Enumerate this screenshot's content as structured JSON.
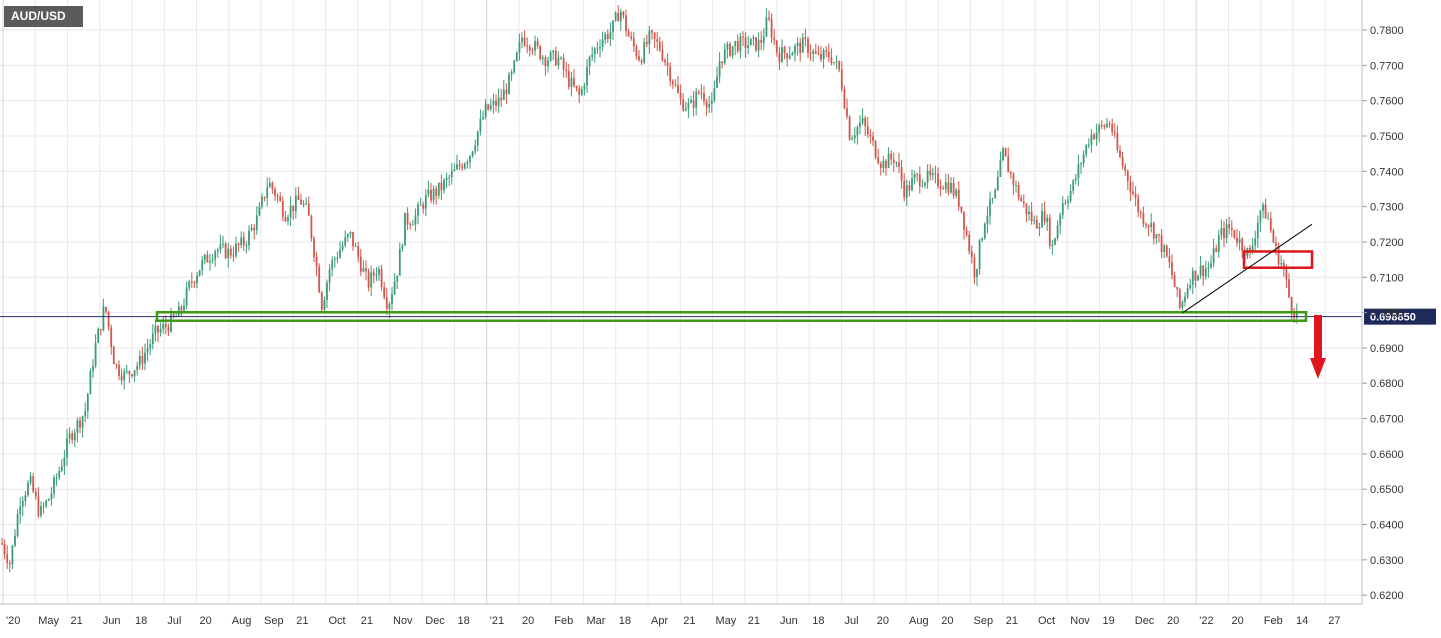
{
  "symbol": "AUD/USD",
  "colors": {
    "background": "#ffffff",
    "grid": "#e9e9ee",
    "bull": "#3a9b74",
    "bear": "#d2564a",
    "price_line": "#2a2d6b",
    "price_label_bg": "#1f2a5c",
    "support_box": "#3d9a12",
    "resistance_box": "#e0161d",
    "arrow": "#e0161d",
    "trendline": "#000000",
    "axis_text": "#333333"
  },
  "chart_data": {
    "type": "candlestick",
    "title": "AUD/USD",
    "ylim": [
      0.6175,
      0.7885
    ],
    "y_ticks": [
      "0.6200",
      "0.6300",
      "0.6400",
      "0.6500",
      "0.6600",
      "0.6700",
      "0.6800",
      "0.6900",
      "0.7000",
      "0.7100",
      "0.7200",
      "0.7300",
      "0.7400",
      "0.7500",
      "0.7600",
      "0.7700",
      "0.7800"
    ],
    "x_ticks": [
      "'20",
      "May",
      "21",
      "Jun",
      "18",
      "Jul",
      "20",
      "Aug",
      "Sep",
      "21",
      "Oct",
      "21",
      "Nov",
      "Dec",
      "18",
      "'21",
      "20",
      "Feb",
      "Mar",
      "18",
      "Apr",
      "21",
      "May",
      "21",
      "Jun",
      "18",
      "Jul",
      "20",
      "Aug",
      "20",
      "Sep",
      "21",
      "Oct",
      "Nov",
      "19",
      "Dec",
      "20",
      "'22",
      "20",
      "Feb",
      "14",
      "27"
    ],
    "current_price": "0.698850",
    "current_price_value": 0.69885,
    "grid": true,
    "path": [
      [
        0,
        0.636
      ],
      [
        10,
        0.629
      ],
      [
        20,
        0.647
      ],
      [
        30,
        0.652
      ],
      [
        40,
        0.643
      ],
      [
        50,
        0.648
      ],
      [
        60,
        0.656
      ],
      [
        70,
        0.665
      ],
      [
        85,
        0.672
      ],
      [
        95,
        0.69
      ],
      [
        105,
        0.702
      ],
      [
        115,
        0.685
      ],
      [
        125,
        0.682
      ],
      [
        140,
        0.686
      ],
      [
        155,
        0.694
      ],
      [
        170,
        0.697
      ],
      [
        180,
        0.7
      ],
      [
        190,
        0.708
      ],
      [
        200,
        0.713
      ],
      [
        215,
        0.718
      ],
      [
        230,
        0.717
      ],
      [
        245,
        0.72
      ],
      [
        258,
        0.727
      ],
      [
        268,
        0.737
      ],
      [
        275,
        0.734
      ],
      [
        285,
        0.728
      ],
      [
        300,
        0.732
      ],
      [
        308,
        0.728
      ],
      [
        315,
        0.716
      ],
      [
        322,
        0.702
      ],
      [
        330,
        0.713
      ],
      [
        340,
        0.718
      ],
      [
        350,
        0.722
      ],
      [
        358,
        0.716
      ],
      [
        368,
        0.708
      ],
      [
        378,
        0.713
      ],
      [
        388,
        0.702
      ],
      [
        398,
        0.713
      ],
      [
        405,
        0.726
      ],
      [
        415,
        0.727
      ],
      [
        425,
        0.732
      ],
      [
        440,
        0.735
      ],
      [
        455,
        0.74
      ],
      [
        470,
        0.745
      ],
      [
        485,
        0.757
      ],
      [
        500,
        0.76
      ],
      [
        512,
        0.767
      ],
      [
        522,
        0.778
      ],
      [
        532,
        0.776
      ],
      [
        545,
        0.772
      ],
      [
        558,
        0.772
      ],
      [
        570,
        0.765
      ],
      [
        580,
        0.761
      ],
      [
        590,
        0.772
      ],
      [
        600,
        0.777
      ],
      [
        612,
        0.78
      ],
      [
        620,
        0.786
      ],
      [
        630,
        0.777
      ],
      [
        640,
        0.772
      ],
      [
        650,
        0.778
      ],
      [
        660,
        0.775
      ],
      [
        670,
        0.768
      ],
      [
        680,
        0.76
      ],
      [
        690,
        0.758
      ],
      [
        700,
        0.763
      ],
      [
        712,
        0.758
      ],
      [
        720,
        0.772
      ],
      [
        735,
        0.776
      ],
      [
        748,
        0.776
      ],
      [
        760,
        0.776
      ],
      [
        768,
        0.783
      ],
      [
        778,
        0.773
      ],
      [
        790,
        0.774
      ],
      [
        805,
        0.776
      ],
      [
        818,
        0.772
      ],
      [
        830,
        0.773
      ],
      [
        840,
        0.768
      ],
      [
        850,
        0.75
      ],
      [
        862,
        0.754
      ],
      [
        872,
        0.748
      ],
      [
        882,
        0.742
      ],
      [
        895,
        0.744
      ],
      [
        905,
        0.734
      ],
      [
        915,
        0.738
      ],
      [
        928,
        0.738
      ],
      [
        940,
        0.737
      ],
      [
        950,
        0.736
      ],
      [
        960,
        0.731
      ],
      [
        968,
        0.72
      ],
      [
        975,
        0.711
      ],
      [
        985,
        0.727
      ],
      [
        995,
        0.733
      ],
      [
        1003,
        0.745
      ],
      [
        1012,
        0.738
      ],
      [
        1022,
        0.731
      ],
      [
        1035,
        0.725
      ],
      [
        1045,
        0.728
      ],
      [
        1052,
        0.718
      ],
      [
        1062,
        0.731
      ],
      [
        1072,
        0.735
      ],
      [
        1080,
        0.742
      ],
      [
        1090,
        0.75
      ],
      [
        1100,
        0.752
      ],
      [
        1110,
        0.754
      ],
      [
        1118,
        0.745
      ],
      [
        1128,
        0.738
      ],
      [
        1140,
        0.728
      ],
      [
        1150,
        0.725
      ],
      [
        1160,
        0.72
      ],
      [
        1170,
        0.713
      ],
      [
        1180,
        0.701
      ],
      [
        1190,
        0.71
      ],
      [
        1200,
        0.712
      ],
      [
        1210,
        0.713
      ],
      [
        1220,
        0.722
      ],
      [
        1230,
        0.724
      ],
      [
        1240,
        0.72
      ],
      [
        1250,
        0.716
      ],
      [
        1260,
        0.729
      ],
      [
        1267,
        0.728
      ],
      [
        1275,
        0.718
      ],
      [
        1283,
        0.713
      ],
      [
        1290,
        0.703
      ],
      [
        1298,
        0.6985
      ]
    ]
  },
  "annotations": {
    "support_zone": [
      0.6977,
      0.7001
    ],
    "resistance_zone": [
      0.7127,
      0.7173
    ],
    "trendline_from": [
      1183,
      0.7
    ],
    "trendline_to": [
      1312,
      0.725
    ],
    "arrow_direction": "down"
  }
}
